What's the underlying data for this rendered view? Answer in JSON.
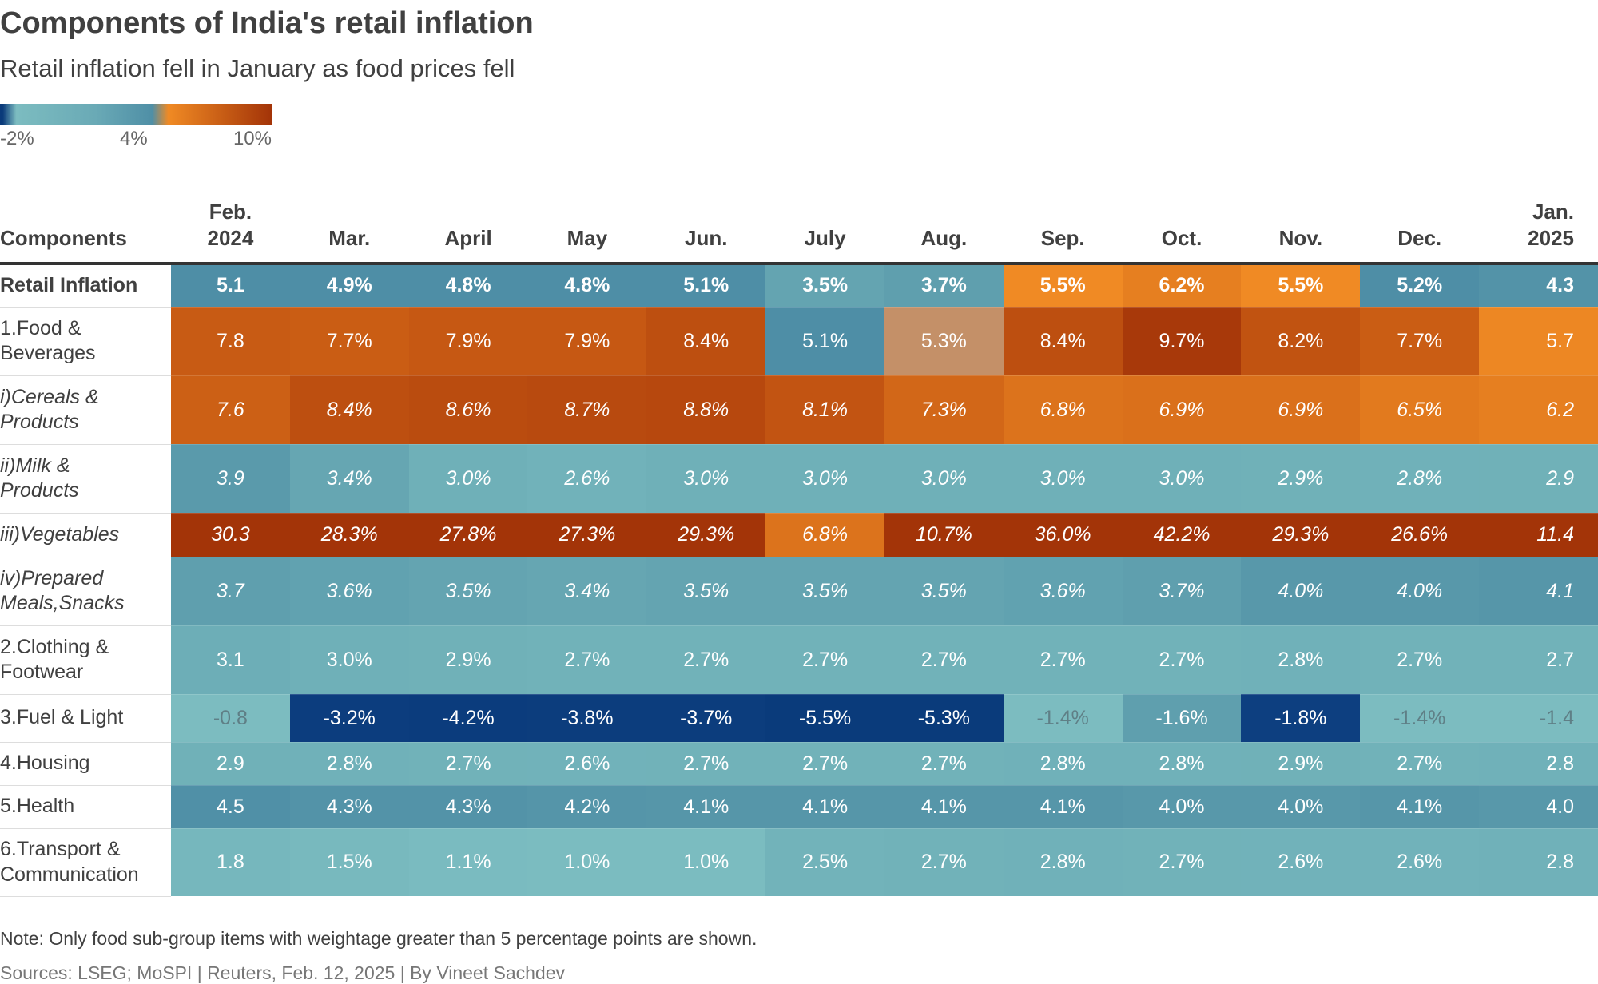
{
  "title": "Components of India's retail inflation",
  "subtitle": "Retail inflation fell in January as food prices fell",
  "legend": {
    "labels": [
      "-2%",
      "4%",
      "10%"
    ],
    "colors": [
      "#0a3a7a",
      "#7cbcc0",
      "#4f8fa6",
      "#f08a24",
      "#a33408"
    ]
  },
  "note": "Note: Only food sub-group items with weightage greater than 5 percentage points are shown.",
  "source": "Sources: LSEG; MoSPI | Reuters, Feb. 12, 2025 | By Vineet Sachdev",
  "chart_data": {
    "type": "heatmap",
    "title": "Components of India's retail inflation",
    "row_header": "Components",
    "columns": [
      [
        "Feb.",
        "2024"
      ],
      [
        "",
        "Mar."
      ],
      [
        "",
        "April"
      ],
      [
        "",
        "May"
      ],
      [
        "",
        "Jun."
      ],
      [
        "",
        "July"
      ],
      [
        "",
        "Aug."
      ],
      [
        "",
        "Sep."
      ],
      [
        "",
        "Oct."
      ],
      [
        "",
        "Nov."
      ],
      [
        "",
        "Dec."
      ],
      [
        "Jan.",
        "2025"
      ]
    ],
    "color_scale": {
      "min": -2,
      "mid": 4,
      "max": 10,
      "unit": "%"
    },
    "rows": [
      {
        "label": [
          "Retail Inflation"
        ],
        "style": "bold",
        "values": [
          5.1,
          4.9,
          4.8,
          4.8,
          5.1,
          3.5,
          3.7,
          5.5,
          6.2,
          5.5,
          5.2,
          4.3
        ]
      },
      {
        "label": [
          "1.Food &",
          "Beverages"
        ],
        "style": "normal",
        "values": [
          7.8,
          7.7,
          7.9,
          7.9,
          8.4,
          5.1,
          5.3,
          8.4,
          9.7,
          8.2,
          7.7,
          5.7
        ]
      },
      {
        "label": [
          "i)Cereals &",
          "Products"
        ],
        "style": "italic",
        "values": [
          7.6,
          8.4,
          8.6,
          8.7,
          8.8,
          8.1,
          7.3,
          6.8,
          6.9,
          6.9,
          6.5,
          6.2
        ]
      },
      {
        "label": [
          "ii)Milk &",
          "Products"
        ],
        "style": "italic",
        "values": [
          3.9,
          3.4,
          3.0,
          2.6,
          3.0,
          3.0,
          3.0,
          3.0,
          3.0,
          2.9,
          2.8,
          2.9
        ]
      },
      {
        "label": [
          "iii)Vegetables"
        ],
        "style": "italic",
        "values": [
          30.3,
          28.3,
          27.8,
          27.3,
          29.3,
          6.8,
          10.7,
          36.0,
          42.2,
          29.3,
          26.6,
          11.4
        ]
      },
      {
        "label": [
          "iv)Prepared",
          "Meals,Snacks"
        ],
        "style": "italic",
        "values": [
          3.7,
          3.6,
          3.5,
          3.4,
          3.5,
          3.5,
          3.5,
          3.6,
          3.7,
          4.0,
          4.0,
          4.1
        ]
      },
      {
        "label": [
          "2.Clothing &",
          "Footwear"
        ],
        "style": "normal",
        "values": [
          3.1,
          3.0,
          2.9,
          2.7,
          2.7,
          2.7,
          2.7,
          2.7,
          2.7,
          2.8,
          2.7,
          2.7
        ]
      },
      {
        "label": [
          "3.Fuel & Light"
        ],
        "style": "normal",
        "values": [
          -0.8,
          -3.2,
          -4.2,
          -3.8,
          -3.7,
          -5.5,
          -5.3,
          -1.4,
          -1.6,
          -1.8,
          -1.4,
          -1.4
        ]
      },
      {
        "label": [
          "4.Housing"
        ],
        "style": "normal",
        "values": [
          2.9,
          2.8,
          2.7,
          2.6,
          2.7,
          2.7,
          2.7,
          2.8,
          2.8,
          2.9,
          2.7,
          2.8
        ]
      },
      {
        "label": [
          "5.Health"
        ],
        "style": "normal",
        "values": [
          4.5,
          4.3,
          4.3,
          4.2,
          4.1,
          4.1,
          4.1,
          4.1,
          4.0,
          4.0,
          4.1,
          4.0
        ]
      },
      {
        "label": [
          "6.Transport &",
          "Communication"
        ],
        "style": "normal",
        "values": [
          1.8,
          1.5,
          1.1,
          1.0,
          1.0,
          2.5,
          2.7,
          2.8,
          2.7,
          2.6,
          2.6,
          2.8
        ]
      }
    ]
  }
}
